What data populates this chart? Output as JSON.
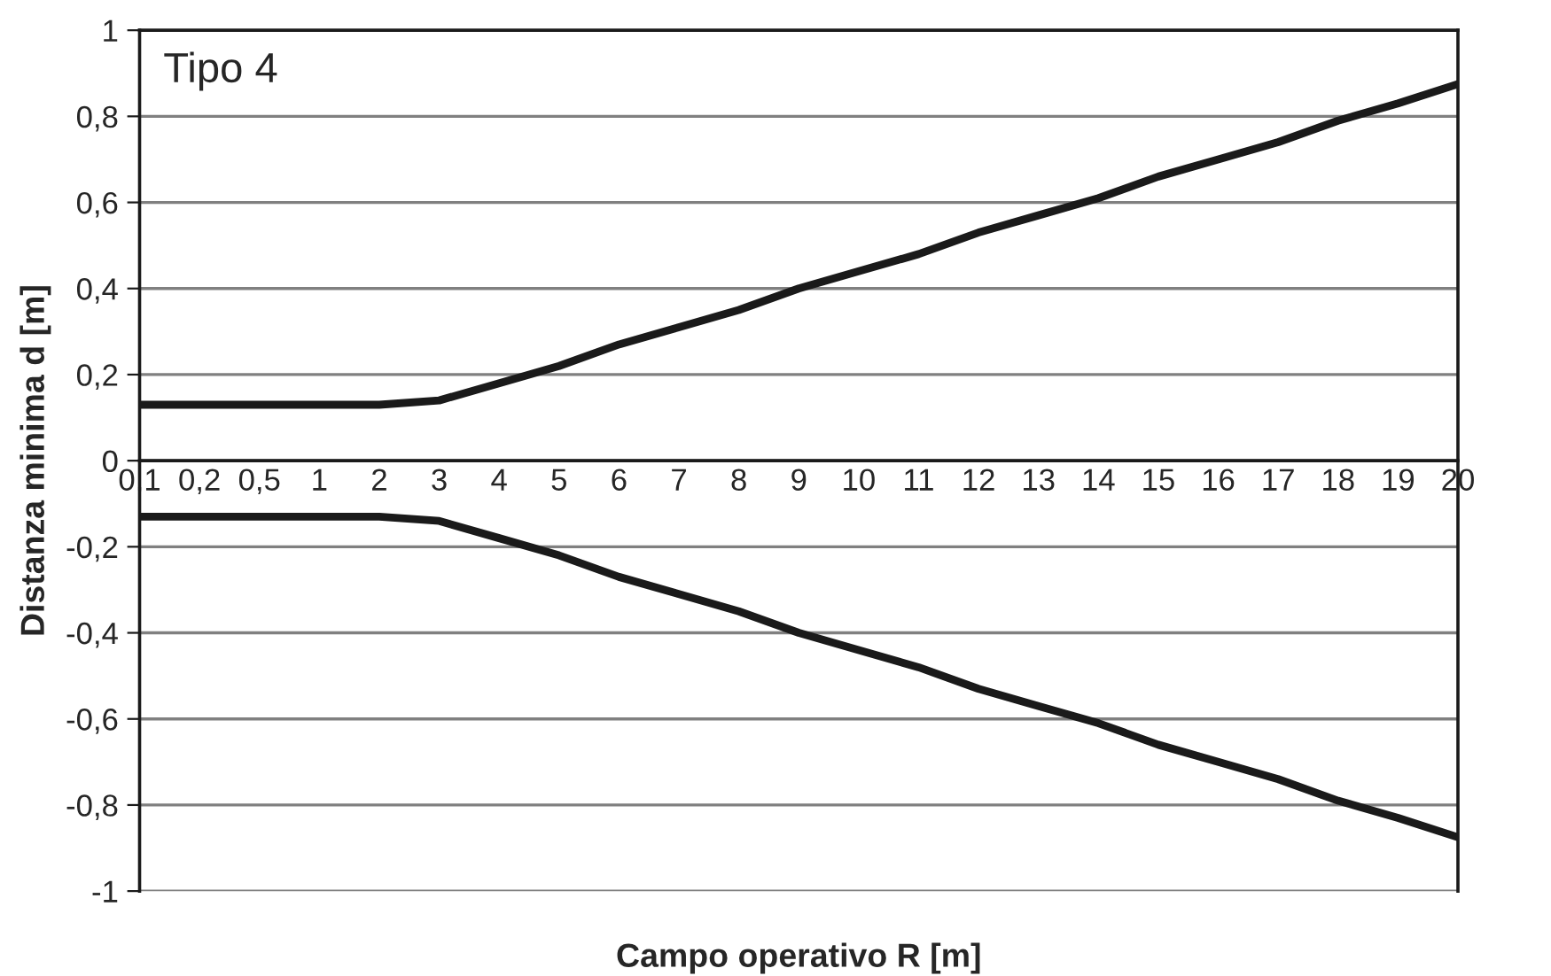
{
  "chart_data": {
    "type": "line",
    "xlabel": "Campo operativo R [m]",
    "ylabel": "Distanza minima d [m]",
    "annotations": [
      "Tipo 4"
    ],
    "categories": [
      "0,1",
      "0,2",
      "0,5",
      "1",
      "2",
      "3",
      "4",
      "5",
      "6",
      "7",
      "8",
      "9",
      "10",
      "11",
      "12",
      "13",
      "14",
      "15",
      "16",
      "17",
      "18",
      "19",
      "20"
    ],
    "series": [
      {
        "color": "#1a1a1a",
        "values": [
          0.13,
          0.13,
          0.13,
          0.13,
          0.13,
          0.14,
          0.18,
          0.22,
          0.27,
          0.31,
          0.35,
          0.4,
          0.44,
          0.48,
          0.53,
          0.57,
          0.61,
          0.66,
          0.7,
          0.74,
          0.79,
          0.83,
          0.875
        ]
      },
      {
        "color": "#1a1a1a",
        "values": [
          -0.13,
          -0.13,
          -0.13,
          -0.13,
          -0.13,
          -0.14,
          -0.18,
          -0.22,
          -0.27,
          -0.31,
          -0.35,
          -0.4,
          -0.44,
          -0.48,
          -0.53,
          -0.57,
          -0.61,
          -0.66,
          -0.7,
          -0.74,
          -0.79,
          -0.83,
          -0.875
        ]
      }
    ],
    "ylim": [
      -1,
      1
    ],
    "yticks": [
      {
        "value": -1,
        "label": "-1"
      },
      {
        "value": -0.8,
        "label": "-0,8"
      },
      {
        "value": -0.6,
        "label": "-0,6"
      },
      {
        "value": -0.4,
        "label": "-0,4"
      },
      {
        "value": -0.2,
        "label": "-0,2"
      },
      {
        "value": 0,
        "label": "0"
      },
      {
        "value": 0.2,
        "label": "0,2"
      },
      {
        "value": 0.4,
        "label": "0,4"
      },
      {
        "value": 0.6,
        "label": "0,6"
      },
      {
        "value": 0.8,
        "label": "0,8"
      },
      {
        "value": 1,
        "label": "1"
      }
    ],
    "grid": "y",
    "marker": "none",
    "line_style": "solid"
  }
}
